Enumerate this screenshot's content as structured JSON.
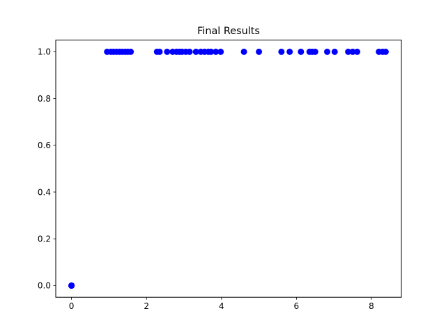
{
  "chart_data": {
    "type": "scatter",
    "title": "Final Results",
    "xlabel": "",
    "ylabel": "",
    "xlim": [
      -0.42,
      8.8
    ],
    "ylim": [
      -0.05,
      1.05
    ],
    "x_ticks": [
      0,
      2,
      4,
      6,
      8
    ],
    "x_tick_labels": [
      "0",
      "2",
      "4",
      "6",
      "8"
    ],
    "y_ticks": [
      0.0,
      0.2,
      0.4,
      0.6,
      0.8,
      1.0
    ],
    "y_tick_labels": [
      "0.0",
      "0.2",
      "0.4",
      "0.6",
      "0.8",
      "1.0"
    ],
    "grid": false,
    "marker_color": "#0000ff",
    "series": [
      {
        "x": [
          0,
          0,
          0,
          0,
          0,
          0.95,
          1.05,
          1.12,
          1.2,
          1.28,
          1.35,
          1.43,
          1.5,
          1.58,
          2.28,
          2.35,
          2.55,
          2.7,
          2.8,
          2.88,
          2.95,
          3.05,
          3.15,
          3.32,
          3.45,
          3.55,
          3.65,
          3.72,
          3.85,
          3.98,
          4.6,
          5.0,
          5.6,
          5.82,
          6.12,
          6.35,
          6.42,
          6.5,
          6.82,
          7.02,
          7.38,
          7.5,
          7.62,
          8.2,
          8.3,
          8.38
        ],
        "y": [
          0,
          0,
          0,
          0,
          0,
          1,
          1,
          1,
          1,
          1,
          1,
          1,
          1,
          1,
          1,
          1,
          1,
          1,
          1,
          1,
          1,
          1,
          1,
          1,
          1,
          1,
          1,
          1,
          1,
          1,
          1,
          1,
          1,
          1,
          1,
          1,
          1,
          1,
          1,
          1,
          1,
          1,
          1,
          1,
          1,
          1
        ]
      }
    ]
  }
}
